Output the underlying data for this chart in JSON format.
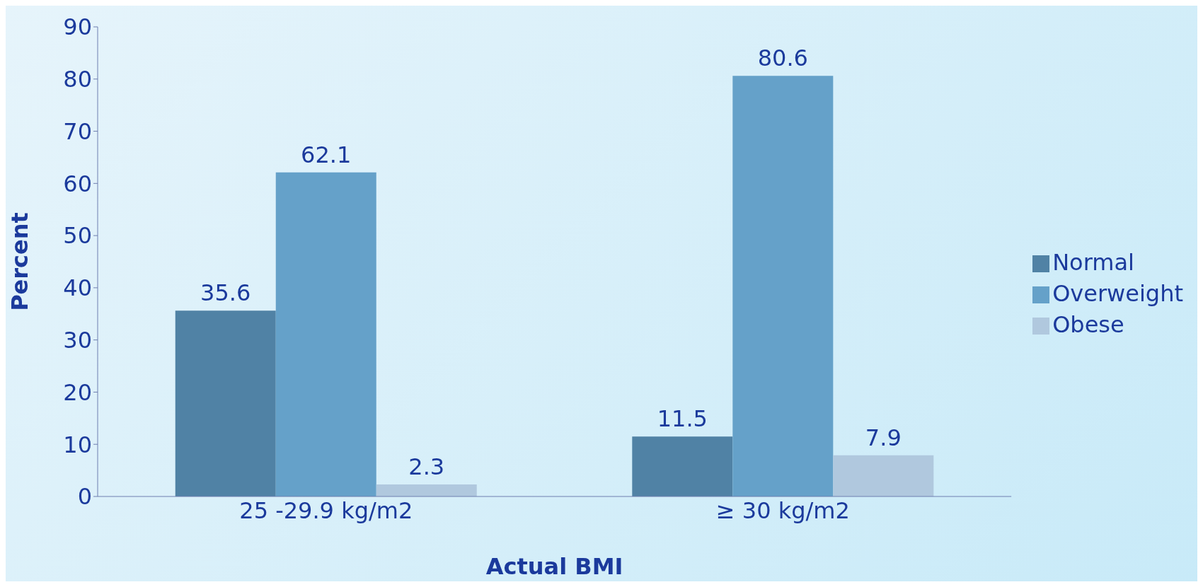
{
  "chart_data": {
    "type": "bar",
    "xlabel": "Actual  BMI",
    "ylabel": "Percent",
    "categories": [
      "25 -29.9 kg/m2",
      "≥ 30 kg/m2"
    ],
    "series": [
      {
        "name": "Normal",
        "color": "#5082a5",
        "values": [
          35.6,
          11.5
        ]
      },
      {
        "name": "Overweight",
        "color": "#65a1c9",
        "values": [
          62.1,
          80.6
        ]
      },
      {
        "name": "Obese",
        "color": "#b0c8de",
        "values": [
          2.3,
          7.9
        ]
      }
    ],
    "ylim": [
      0,
      90
    ],
    "yticks": [
      0,
      10,
      20,
      30,
      40,
      50,
      60,
      70,
      80,
      90
    ],
    "grid": false,
    "legend": "right",
    "data_labels": true
  }
}
